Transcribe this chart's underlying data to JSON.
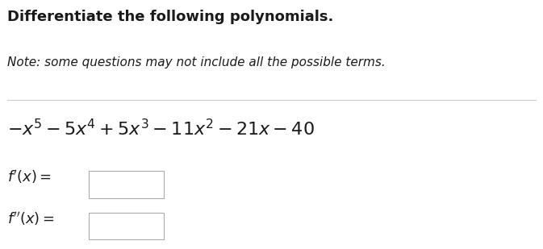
{
  "title": "Differentiate the following polynomials.",
  "note": "Note: some questions may not include all the possible terms.",
  "polynomial": "$-x^5 - 5x^4 + 5x^3 - 11x^2 - 21x - 40$",
  "f_prime_label": "$f'(x) =$",
  "f_double_prime_label": "$f''(x) =$",
  "bg_color": "#ffffff",
  "title_color": "#1a1a1a",
  "note_color": "#1a1a1a",
  "line_color": "#cccccc",
  "box_edge_color": "#aaaaaa",
  "title_fontsize": 13,
  "note_fontsize": 11,
  "poly_fontsize": 16,
  "label_fontsize": 13
}
